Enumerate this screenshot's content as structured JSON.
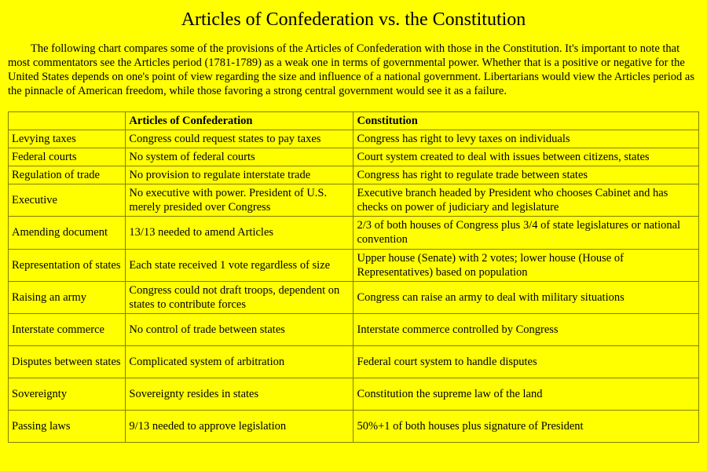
{
  "title": "Articles of Confederation vs. the Constitution",
  "intro": "The following chart compares some of the provisions of the Articles of Confederation with those in the Constitution. It's important to note that most commentators see the Articles period (1781-1789) as a weak one in terms of governmental power. Whether that is a positive or negative for the United States depends on one's point of view regarding the size and influence of a national government. Libertarians would view the Articles period as the pinnacle of American freedom, while those favoring a strong central government would see it as a failure.",
  "table": {
    "columns": [
      "",
      "Articles of Confederation",
      "Constitution"
    ],
    "rows": [
      [
        "Levying taxes",
        "Congress could request states to pay taxes",
        "Congress has right to levy taxes on individuals"
      ],
      [
        "Federal courts",
        "No system of federal courts",
        "Court system created to deal with issues between citizens, states"
      ],
      [
        "Regulation of trade",
        "No provision to regulate interstate trade",
        "Congress has right to regulate trade between states"
      ],
      [
        "Executive",
        "No executive with power. President of U.S. merely presided over Congress",
        "Executive branch headed by President who chooses Cabinet and has checks on power of judiciary and legislature"
      ],
      [
        "Amending document",
        "13/13 needed to amend Articles",
        "2/3 of both houses of Congress plus 3/4 of state legislatures or national convention"
      ],
      [
        "Representation of states",
        "Each state received 1 vote regardless of size",
        "Upper house (Senate) with 2 votes; lower house (House of Representatives) based on population"
      ],
      [
        "Raising an army",
        "Congress could not draft troops, dependent on states to contribute forces",
        "Congress can raise an army to deal with military situations"
      ],
      [
        "Interstate commerce",
        "No control of trade between states",
        "Interstate commerce controlled by Congress"
      ],
      [
        "Disputes between states",
        "Complicated system of arbitration",
        "Federal court system to handle disputes"
      ],
      [
        "Sovereignty",
        "Sovereignty resides in states",
        "Constitution the supreme law of the land"
      ],
      [
        "Passing laws",
        "9/13 needed to approve legislation",
        "50%+1 of both houses plus signature of President"
      ]
    ],
    "tall_rows": [
      6,
      7,
      8,
      9,
      10
    ],
    "background_color": "#ffff00",
    "border_color": "#808000",
    "text_color": "#000000",
    "title_fontsize": 24,
    "body_fontsize": 14.5
  }
}
